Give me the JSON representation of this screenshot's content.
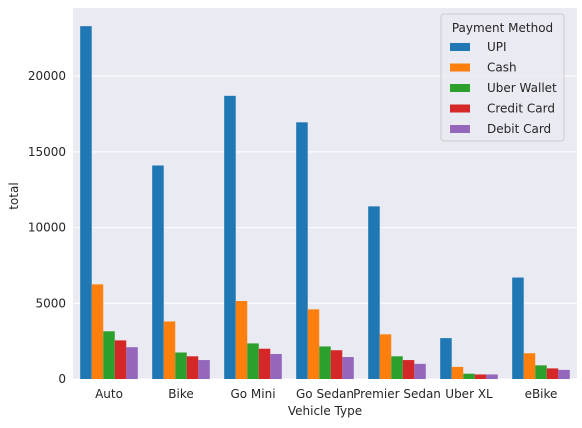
{
  "chart_data": {
    "type": "bar",
    "categories": [
      "Auto",
      "Bike",
      "Go Mini",
      "Go Sedan",
      "Premier Sedan",
      "Uber XL",
      "eBike"
    ],
    "series": [
      {
        "name": "UPI",
        "color": "#1f77b4",
        "values": [
          23300,
          14100,
          18700,
          16950,
          11400,
          2700,
          6700
        ]
      },
      {
        "name": "Cash",
        "color": "#ff7f0e",
        "values": [
          6250,
          3800,
          5150,
          4600,
          2950,
          800,
          1700
        ]
      },
      {
        "name": "Uber Wallet",
        "color": "#2ca02c",
        "values": [
          3150,
          1750,
          2350,
          2150,
          1500,
          350,
          900
        ]
      },
      {
        "name": "Credit Card",
        "color": "#d62728",
        "values": [
          2550,
          1500,
          2000,
          1900,
          1250,
          300,
          700
        ]
      },
      {
        "name": "Debit Card",
        "color": "#9467bd",
        "values": [
          2100,
          1250,
          1650,
          1450,
          1000,
          300,
          600
        ]
      }
    ],
    "xlabel": "Vehicle Type",
    "ylabel": "total",
    "yticks": [
      0,
      5000,
      10000,
      15000,
      20000
    ],
    "ylim": [
      0,
      24500
    ],
    "grid": true,
    "legend": {
      "title": "Payment Method",
      "placement": "top-right"
    }
  }
}
